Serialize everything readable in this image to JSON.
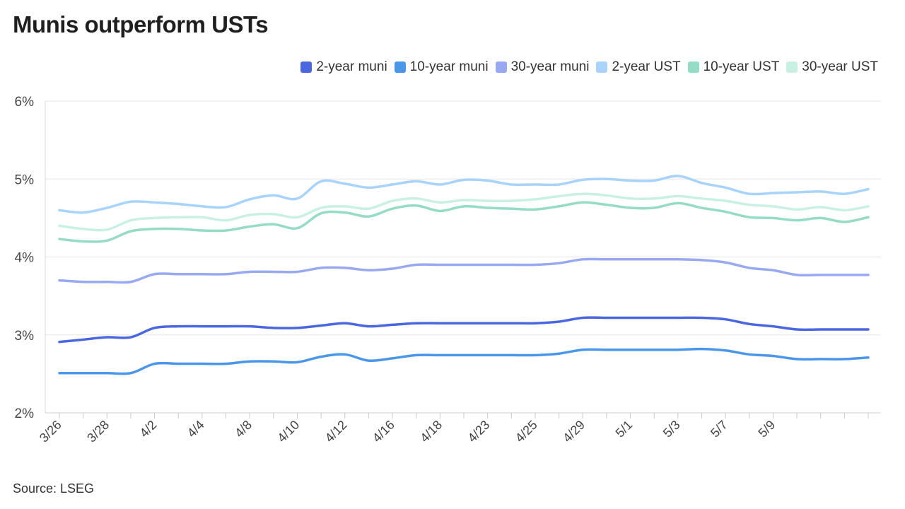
{
  "title": "Munis outperform USTs",
  "source": "Source: LSEG",
  "chart_data": {
    "type": "line",
    "title": "Munis outperform USTs",
    "xlabel": "",
    "ylabel": "",
    "ylim": [
      2,
      6
    ],
    "yticks": [
      2,
      3,
      4,
      5,
      6
    ],
    "ytick_suffix": "%",
    "grid": true,
    "legend_position": "top-right",
    "x_tick_labels": [
      "3/26",
      "3/28",
      "4/2",
      "4/4",
      "4/8",
      "4/10",
      "4/12",
      "4/16",
      "4/18",
      "4/23",
      "4/25",
      "4/29",
      "5/1",
      "5/3",
      "5/7",
      "5/9"
    ],
    "x_label_every": 2,
    "series": [
      {
        "name": "2-year muni",
        "color": "#4a67e0",
        "values": [
          2.91,
          2.94,
          2.97,
          2.97,
          3.09,
          3.11,
          3.11,
          3.11,
          3.11,
          3.09,
          3.09,
          3.12,
          3.15,
          3.11,
          3.13,
          3.15,
          3.15,
          3.15,
          3.15,
          3.15,
          3.15,
          3.17,
          3.22,
          3.22,
          3.22,
          3.22,
          3.22,
          3.22,
          3.2,
          3.14,
          3.11,
          3.07,
          3.07,
          3.07,
          3.07
        ]
      },
      {
        "name": "10-year muni",
        "color": "#4a97ea",
        "values": [
          2.51,
          2.51,
          2.51,
          2.51,
          2.63,
          2.63,
          2.63,
          2.63,
          2.66,
          2.66,
          2.65,
          2.72,
          2.75,
          2.67,
          2.7,
          2.74,
          2.74,
          2.74,
          2.74,
          2.74,
          2.74,
          2.76,
          2.81,
          2.81,
          2.81,
          2.81,
          2.81,
          2.82,
          2.8,
          2.75,
          2.73,
          2.69,
          2.69,
          2.69,
          2.71
        ]
      },
      {
        "name": "30-year muni",
        "color": "#98a9f2",
        "values": [
          3.7,
          3.68,
          3.68,
          3.68,
          3.78,
          3.78,
          3.78,
          3.78,
          3.81,
          3.81,
          3.81,
          3.86,
          3.86,
          3.83,
          3.85,
          3.9,
          3.9,
          3.9,
          3.9,
          3.9,
          3.9,
          3.92,
          3.97,
          3.97,
          3.97,
          3.97,
          3.97,
          3.96,
          3.93,
          3.86,
          3.83,
          3.77,
          3.77,
          3.77,
          3.77
        ]
      },
      {
        "name": "2-year UST",
        "color": "#a8d3fb",
        "values": [
          4.6,
          4.57,
          4.63,
          4.71,
          4.7,
          4.68,
          4.65,
          4.64,
          4.74,
          4.79,
          4.75,
          4.97,
          4.94,
          4.89,
          4.93,
          4.97,
          4.93,
          4.99,
          4.98,
          4.93,
          4.93,
          4.93,
          4.99,
          5.0,
          4.98,
          4.98,
          5.04,
          4.95,
          4.89,
          4.81,
          4.82,
          4.83,
          4.84,
          4.81,
          4.87
        ]
      },
      {
        "name": "10-year UST",
        "color": "#95dcc7",
        "values": [
          4.23,
          4.2,
          4.21,
          4.33,
          4.36,
          4.36,
          4.34,
          4.34,
          4.39,
          4.42,
          4.37,
          4.56,
          4.57,
          4.52,
          4.62,
          4.66,
          4.59,
          4.65,
          4.63,
          4.62,
          4.61,
          4.65,
          4.7,
          4.67,
          4.63,
          4.63,
          4.69,
          4.63,
          4.58,
          4.51,
          4.5,
          4.47,
          4.5,
          4.45,
          4.51
        ]
      },
      {
        "name": "30-year UST",
        "color": "#c9f1e3",
        "values": [
          4.4,
          4.36,
          4.35,
          4.47,
          4.5,
          4.51,
          4.51,
          4.47,
          4.54,
          4.55,
          4.51,
          4.63,
          4.65,
          4.62,
          4.72,
          4.75,
          4.7,
          4.73,
          4.72,
          4.72,
          4.74,
          4.78,
          4.81,
          4.79,
          4.75,
          4.75,
          4.78,
          4.75,
          4.72,
          4.67,
          4.65,
          4.61,
          4.64,
          4.6,
          4.65
        ]
      }
    ]
  }
}
